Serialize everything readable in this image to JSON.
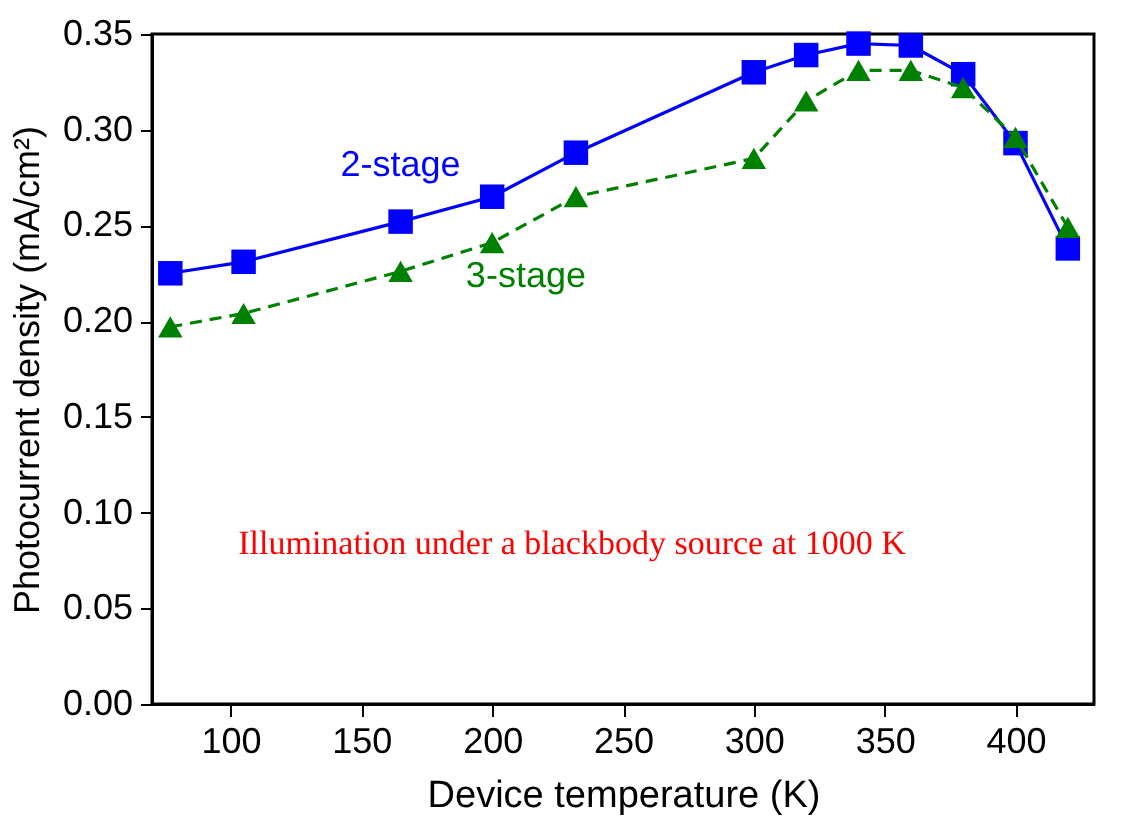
{
  "chart_data": {
    "type": "line",
    "xlabel": "Device temperature (K)",
    "ylabel": "Photocurrent density (mA/cm²)",
    "annotations": [
      "Illumination under a blackbody source at 1000 K"
    ],
    "x": [
      77,
      105,
      165,
      200,
      232,
      300,
      320,
      340,
      360,
      380,
      400,
      420
    ],
    "series": [
      {
        "name": "2-stage",
        "color": "#0000ff",
        "marker": "square",
        "line_style": "solid",
        "values": [
          0.225,
          0.231,
          0.252,
          0.265,
          0.288,
          0.33,
          0.339,
          0.345,
          0.344,
          0.329,
          0.293,
          0.238
        ]
      },
      {
        "name": "3-stage",
        "color": "#008000",
        "marker": "triangle",
        "line_style": "dashed",
        "values": [
          0.197,
          0.204,
          0.226,
          0.241,
          0.265,
          0.285,
          0.315,
          0.331,
          0.331,
          0.322,
          0.296,
          0.249
        ]
      }
    ],
    "xlim": [
      70,
      430
    ],
    "xticks": [
      100,
      150,
      200,
      250,
      300,
      350,
      400
    ],
    "ylim": [
      0,
      0.35
    ],
    "yticks": [
      {
        "value": 0,
        "label": "0.00"
      },
      0.05,
      {
        "value": 0.1,
        "label": "0.10"
      },
      0.15,
      {
        "value": 0.2,
        "label": "0.20"
      },
      0.25,
      {
        "value": 0.3,
        "label": "0.30"
      },
      0.35
    ],
    "grid": false
  }
}
